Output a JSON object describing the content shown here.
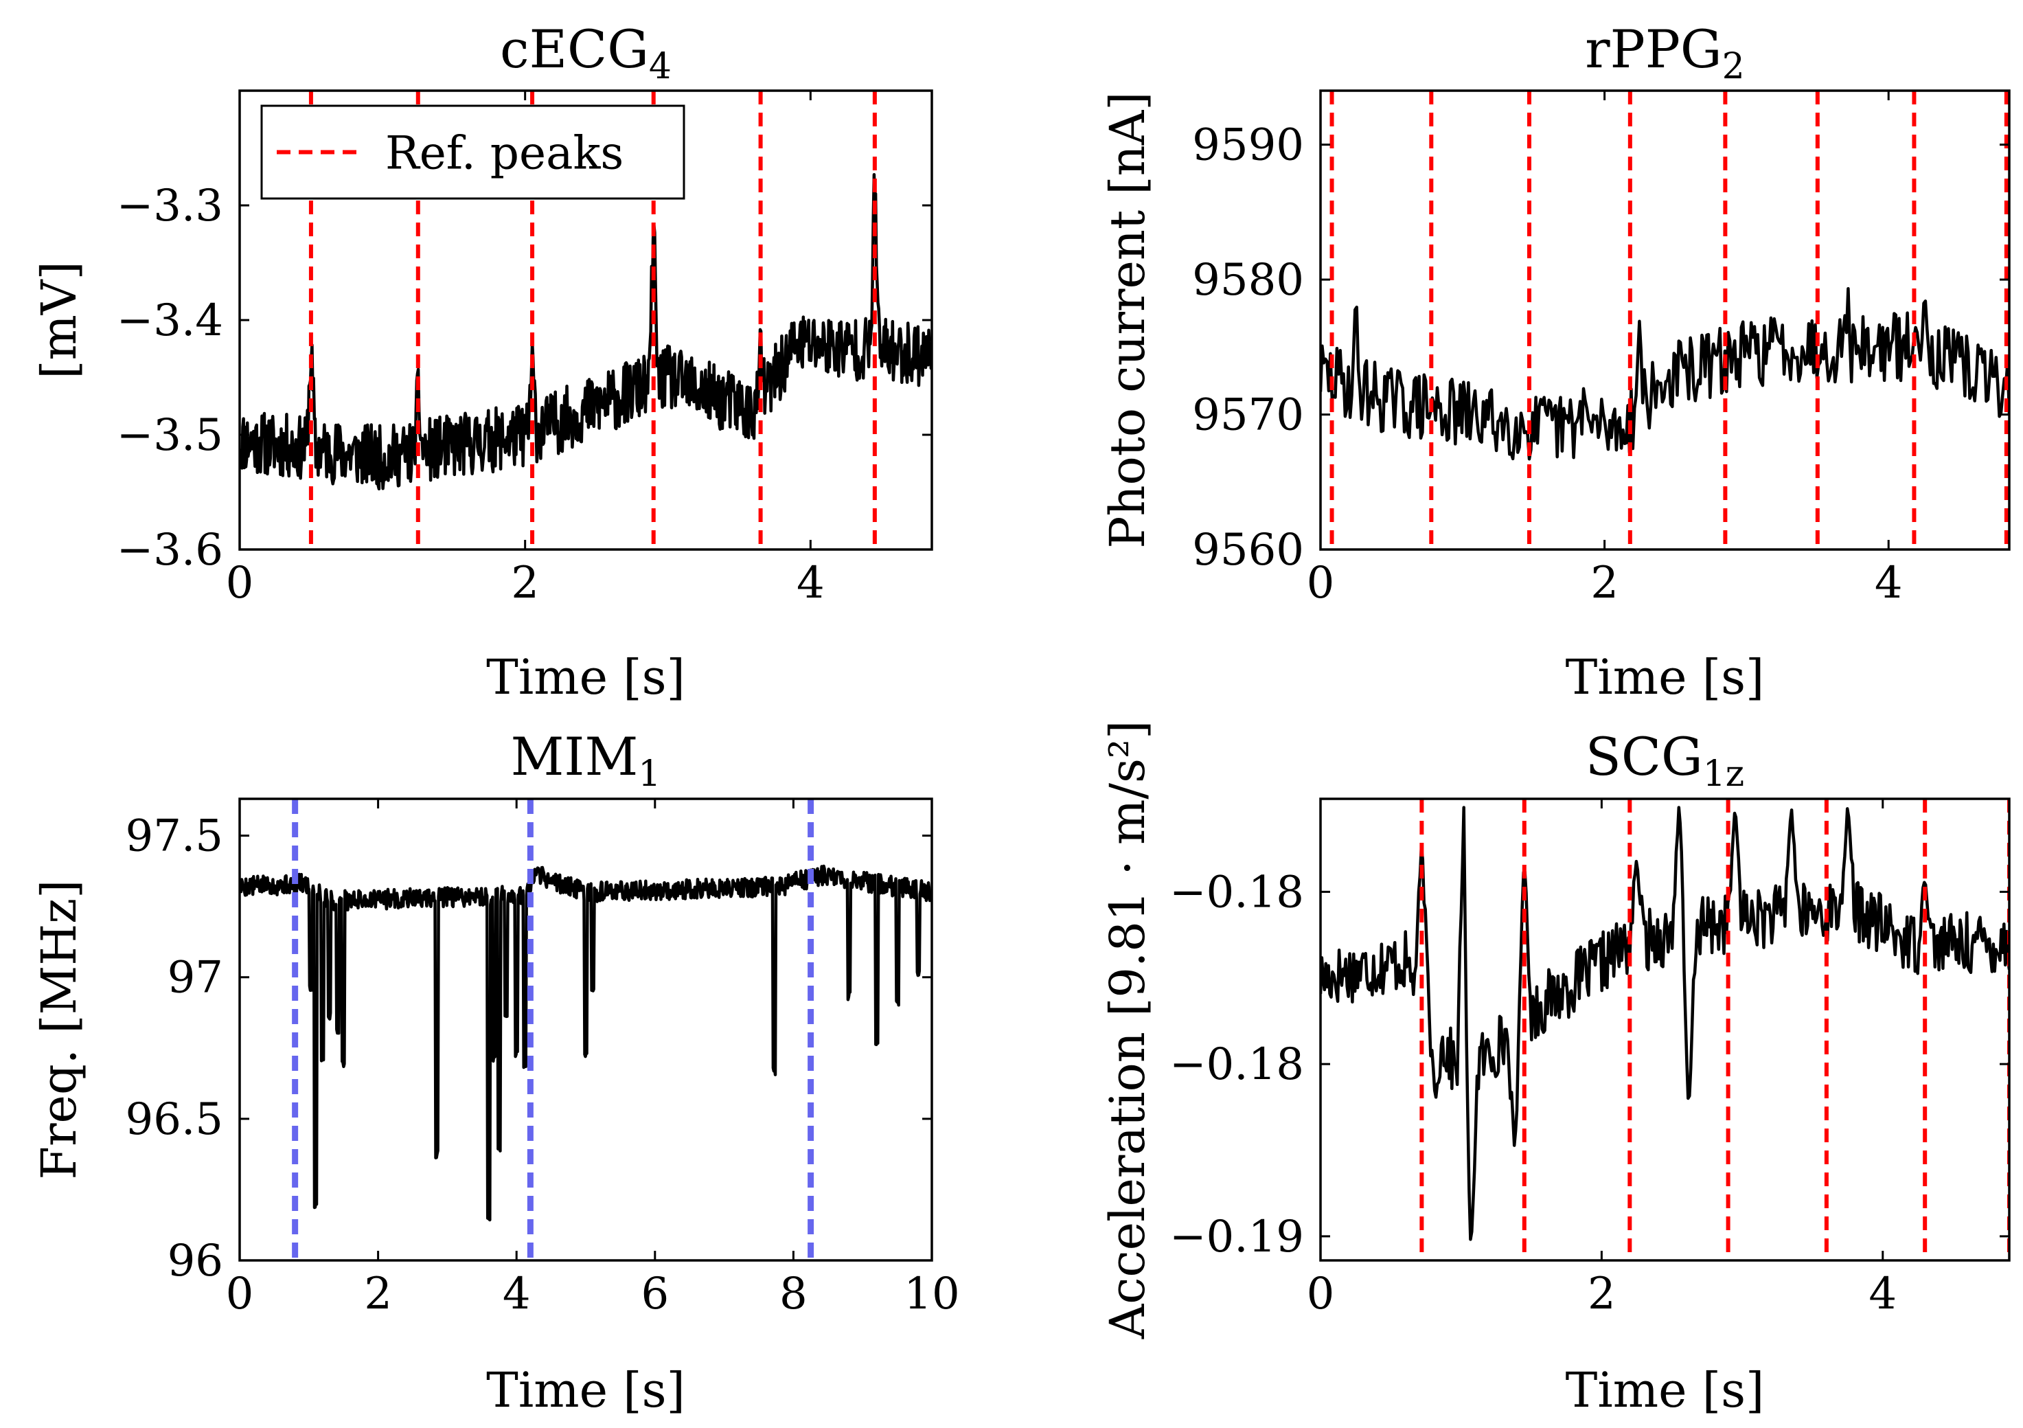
{
  "chart_data": [
    {
      "id": "cecg",
      "type": "line",
      "title": "cECG",
      "title_sub": "4",
      "xlabel": "Time [s]",
      "ylabel": "[mV]",
      "xlim": [
        0,
        4.85
      ],
      "ylim": [
        -3.6,
        -3.2
      ],
      "xticks": [
        0,
        2,
        4
      ],
      "xtick_labels": [
        "0",
        "2",
        "4"
      ],
      "yticks": [
        -3.6,
        -3.5,
        -3.4,
        -3.3
      ],
      "ytick_labels": [
        "−3.6",
        "−3.5",
        "−3.4",
        "−3.3"
      ],
      "signal": {
        "name": "cECG",
        "color": "#000000",
        "x_start": 0,
        "x_end": 4.85,
        "n": 900,
        "baseline": [
          [
            0,
            -3.505
          ],
          [
            1.0,
            -3.52
          ],
          [
            2.0,
            -3.5
          ],
          [
            3.0,
            -3.45
          ],
          [
            3.6,
            -3.48
          ],
          [
            3.9,
            -3.42
          ],
          [
            4.85,
            -3.43
          ]
        ],
        "noise_amplitude": 0.028,
        "spikes": [
          [
            0.5,
            0.09
          ],
          [
            1.25,
            0.05
          ],
          [
            2.05,
            0.06
          ],
          [
            2.9,
            0.14
          ],
          [
            3.65,
            0.04
          ],
          [
            4.45,
            0.15
          ]
        ],
        "seed": 11
      },
      "peaks": [
        0.5,
        1.25,
        2.05,
        2.9,
        3.65,
        4.45
      ],
      "peak_color": "#ff0000",
      "legend": {
        "label": "Ref. peaks",
        "position": "top-left"
      }
    },
    {
      "id": "rppg",
      "type": "line",
      "title": "rPPG",
      "title_sub": "2",
      "xlabel": "Time [s]",
      "ylabel": "Photo current [nA]",
      "xlim": [
        0,
        4.85
      ],
      "ylim": [
        9560,
        9594
      ],
      "xticks": [
        0,
        2,
        4
      ],
      "xtick_labels": [
        "0",
        "2",
        "4"
      ],
      "yticks": [
        9560,
        9570,
        9580,
        9590
      ],
      "ytick_labels": [
        "9560",
        "9570",
        "9580",
        "9590"
      ],
      "signal": {
        "name": "rPPG",
        "color": "#000000",
        "x_start": 0,
        "x_end": 4.85,
        "n": 420,
        "baseline": [
          [
            0,
            9573
          ],
          [
            0.5,
            9571
          ],
          [
            1.5,
            9569
          ],
          [
            2.1,
            9569
          ],
          [
            2.5,
            9573
          ],
          [
            3.2,
            9575
          ],
          [
            4.2,
            9575
          ],
          [
            4.85,
            9572
          ]
        ],
        "noise_amplitude": 2.6,
        "spikes": [
          [
            0.25,
            5
          ],
          [
            1.85,
            3
          ],
          [
            2.25,
            7
          ],
          [
            3.7,
            4
          ],
          [
            4.25,
            6
          ]
        ],
        "seed": 29
      },
      "peaks": [
        0.08,
        0.78,
        1.47,
        2.18,
        2.85,
        3.5,
        4.18,
        4.83
      ],
      "peak_color": "#ff0000"
    },
    {
      "id": "mim",
      "type": "line",
      "title": "MIM",
      "title_sub": "1",
      "xlabel": "Time [s]",
      "ylabel": "Freq. [MHz]",
      "xlim": [
        0,
        10
      ],
      "ylim": [
        96.0,
        97.63
      ],
      "xticks": [
        0,
        2,
        4,
        6,
        8,
        10
      ],
      "xtick_labels": [
        "0",
        "2",
        "4",
        "6",
        "8",
        "10"
      ],
      "yticks": [
        96.0,
        96.5,
        97.0,
        97.5
      ],
      "ytick_labels": [
        "96",
        "96.5",
        "97",
        "97.5"
      ],
      "signal": {
        "name": "MIM",
        "color": "#000000",
        "x_start": 0,
        "x_end": 10,
        "n": 1000,
        "baseline": [
          [
            0,
            97.32
          ],
          [
            0.95,
            97.33
          ],
          [
            1.3,
            97.27
          ],
          [
            4.1,
            97.29
          ],
          [
            4.3,
            97.36
          ],
          [
            5.0,
            97.3
          ],
          [
            7.8,
            97.32
          ],
          [
            8.4,
            97.36
          ],
          [
            10,
            97.3
          ]
        ],
        "noise_amplitude": 0.035,
        "dips": [
          [
            1.03,
            96.95
          ],
          [
            1.1,
            96.18
          ],
          [
            1.2,
            96.7
          ],
          [
            1.3,
            96.85
          ],
          [
            1.42,
            96.8
          ],
          [
            1.5,
            96.68
          ],
          [
            2.85,
            96.36
          ],
          [
            3.6,
            96.13
          ],
          [
            3.68,
            96.7
          ],
          [
            3.75,
            96.38
          ],
          [
            3.85,
            96.85
          ],
          [
            4.0,
            96.72
          ],
          [
            4.12,
            96.68
          ],
          [
            5.0,
            96.72
          ],
          [
            5.1,
            96.95
          ],
          [
            7.72,
            96.65
          ],
          [
            8.8,
            96.92
          ],
          [
            9.2,
            96.75
          ],
          [
            9.5,
            96.9
          ],
          [
            9.8,
            97.0
          ]
        ],
        "seed": 5
      },
      "peaks": [
        0.8,
        4.2,
        8.25
      ],
      "peak_color": "#6666ee"
    },
    {
      "id": "scg",
      "type": "line",
      "title": "SCG",
      "title_sub": "1z",
      "xlabel": "Time [s]",
      "ylabel": "Acceleration [9.81 · m/s²]",
      "xlim": [
        0,
        4.9
      ],
      "ylim": [
        -0.1907,
        -0.1773
      ],
      "xticks": [
        0,
        2,
        4
      ],
      "xtick_labels": [
        "0",
        "2",
        "4"
      ],
      "yticks": [
        -0.19,
        -0.185,
        -0.18
      ],
      "ytick_labels": [
        "−0.19",
        "−0.18",
        "−0.18"
      ],
      "signal": {
        "name": "SCG",
        "color": "#000000",
        "x_start": 0,
        "x_end": 4.9,
        "n": 520,
        "baseline": [
          [
            0,
            -0.1825
          ],
          [
            0.6,
            -0.182
          ],
          [
            1.0,
            -0.1855
          ],
          [
            1.5,
            -0.1835
          ],
          [
            2.2,
            -0.1815
          ],
          [
            3.0,
            -0.1808
          ],
          [
            3.8,
            -0.1805
          ],
          [
            4.2,
            -0.1815
          ],
          [
            4.9,
            -0.1815
          ]
        ],
        "noise_amplitude": 0.0009,
        "events": [
          [
            0.72,
            -0.1785
          ],
          [
            0.82,
            -0.186
          ],
          [
            1.02,
            -0.1775
          ],
          [
            1.07,
            -0.1905
          ],
          [
            1.38,
            -0.1875
          ],
          [
            1.45,
            -0.179
          ],
          [
            2.25,
            -0.179
          ],
          [
            2.55,
            -0.1775
          ],
          [
            2.62,
            -0.1865
          ],
          [
            2.95,
            -0.1775
          ],
          [
            3.35,
            -0.1775
          ],
          [
            3.75,
            -0.1775
          ],
          [
            4.3,
            -0.1795
          ]
        ],
        "seed": 17
      },
      "peaks": [
        0.72,
        1.45,
        2.2,
        2.9,
        3.6,
        4.3,
        4.9
      ],
      "peak_color": "#ff0000"
    }
  ]
}
